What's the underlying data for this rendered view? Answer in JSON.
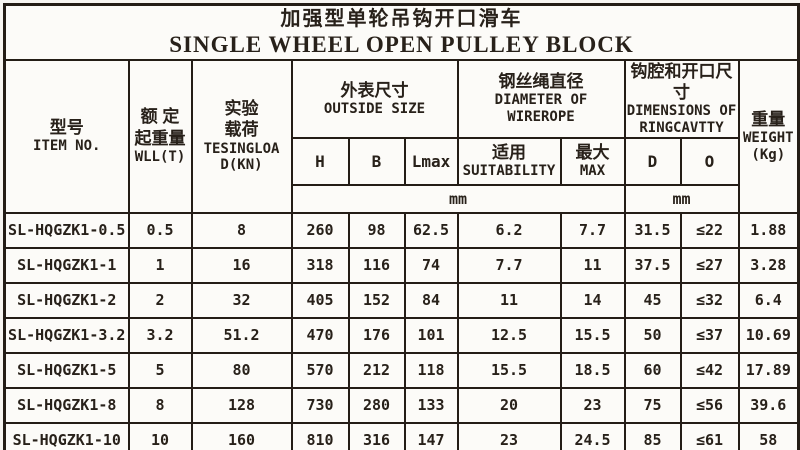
{
  "title": {
    "zh": "加强型单轮吊钩开口滑车",
    "en": "SINGLE WHEEL OPEN PULLEY BLOCK"
  },
  "header": {
    "item_no": {
      "zh": "型号",
      "en": "ITEM NO."
    },
    "wll": {
      "zh": "额 定\n起重量",
      "en": "WLL(T)"
    },
    "test_load": {
      "zh": "实验\n载荷",
      "en": "TESINGLOAD(KN)"
    },
    "outside_size": {
      "zh": "外表尺寸",
      "en": "OUTSIDE SIZE"
    },
    "wirerope_dia": {
      "zh": "钢丝绳直径",
      "en": "DIAMETER OF WIREROPE"
    },
    "ring_cavity": {
      "zh": "钩腔和开口尺寸",
      "en": "DIMENSIONS OF RINGCAVTTY"
    },
    "weight": {
      "zh": "重量",
      "en": "WEIGHT",
      "unit": "(Kg)"
    },
    "col_h": "H",
    "col_b": "B",
    "col_lmax": "Lmax",
    "suitability": {
      "zh": "适用",
      "en": "SUITABILITY"
    },
    "max": {
      "zh": "最大",
      "en": "MAX"
    },
    "col_d": "D",
    "col_o": "O",
    "mm_outside": "mm",
    "mm_ring": "mm"
  },
  "table": {
    "column_keys": [
      "item_no",
      "wll_t",
      "testing_load_kn",
      "h_mm",
      "b_mm",
      "lmax_mm",
      "wirerope_suitability_mm",
      "wirerope_max_mm",
      "d_mm",
      "o_mm",
      "weight_kg"
    ],
    "rows": [
      [
        "SL-HQGZK1-0.5",
        "0.5",
        "8",
        "260",
        "98",
        "62.5",
        "6.2",
        "7.7",
        "31.5",
        "≤22",
        "1.88"
      ],
      [
        "SL-HQGZK1-1",
        "1",
        "16",
        "318",
        "116",
        "74",
        "7.7",
        "11",
        "37.5",
        "≤27",
        "3.28"
      ],
      [
        "SL-HQGZK1-2",
        "2",
        "32",
        "405",
        "152",
        "84",
        "11",
        "14",
        "45",
        "≤32",
        "6.4"
      ],
      [
        "SL-HQGZK1-3.2",
        "3.2",
        "51.2",
        "470",
        "176",
        "101",
        "12.5",
        "15.5",
        "50",
        "≤37",
        "10.69"
      ],
      [
        "SL-HQGZK1-5",
        "5",
        "80",
        "570",
        "212",
        "118",
        "15.5",
        "18.5",
        "60",
        "≤42",
        "17.89"
      ],
      [
        "SL-HQGZK1-8",
        "8",
        "128",
        "730",
        "280",
        "133",
        "20",
        "23",
        "75",
        "≤56",
        "39.6"
      ],
      [
        "SL-HQGZK1-10",
        "10",
        "160",
        "810",
        "316",
        "147",
        "23",
        "24.5",
        "85",
        "≤61",
        "58"
      ]
    ]
  },
  "colors": {
    "paper": "#f7f5f1",
    "ink": "#28211a",
    "border": "#241d16"
  }
}
